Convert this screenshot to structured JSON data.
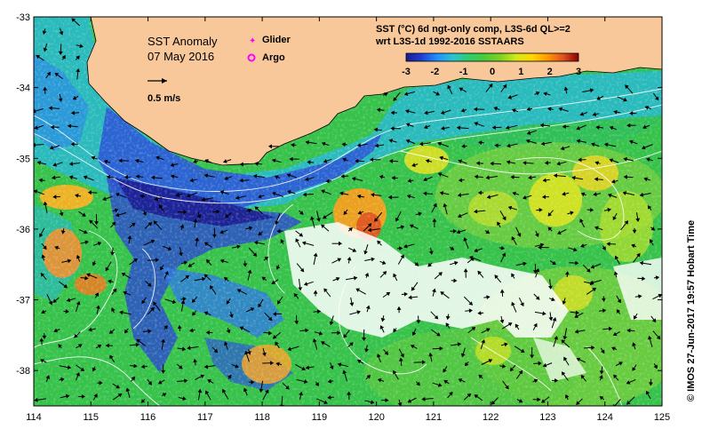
{
  "title": {
    "line1": "SST Anomaly",
    "line2": "07 May 2016"
  },
  "legend": {
    "glider": "Glider",
    "argo": "Argo",
    "glider_color": "#ff00ff",
    "argo_color": "#ff00ff"
  },
  "scale": {
    "label": "0.5 m/s"
  },
  "description": {
    "line1": "SST (°C) 6d ngt-only comp, L3S-6d QL>=2",
    "line2": "wrt L3S-1d 1992-2016 SSTAARS"
  },
  "colorbar": {
    "ticks": [
      "-3",
      "-2",
      "-1",
      "0",
      "1",
      "2",
      "3"
    ],
    "range": [
      -3,
      3
    ],
    "colors": [
      "#1a1a8f",
      "#1f3fd6",
      "#1e90ff",
      "#27c3d6",
      "#2ecc71",
      "#7ed321",
      "#d4e81a",
      "#ffd700",
      "#ff9900",
      "#e0521e",
      "#b22222",
      "#8b0000"
    ]
  },
  "axes": {
    "x_ticks": [
      "114",
      "115",
      "116",
      "117",
      "118",
      "119",
      "120",
      "121",
      "122",
      "123",
      "124",
      "125"
    ],
    "y_ticks": [
      "-33",
      "-34",
      "-35",
      "-36",
      "-37",
      "-38"
    ],
    "x_range": [
      114,
      125
    ],
    "y_range": [
      -33,
      -38.5
    ]
  },
  "credit": "© IMOS 27-Jun-2017 19:57 Hobart Time",
  "colors": {
    "land": "#f8c89a",
    "missing": "#ffffff",
    "frame": "#000000",
    "contour": "#ffffff"
  }
}
